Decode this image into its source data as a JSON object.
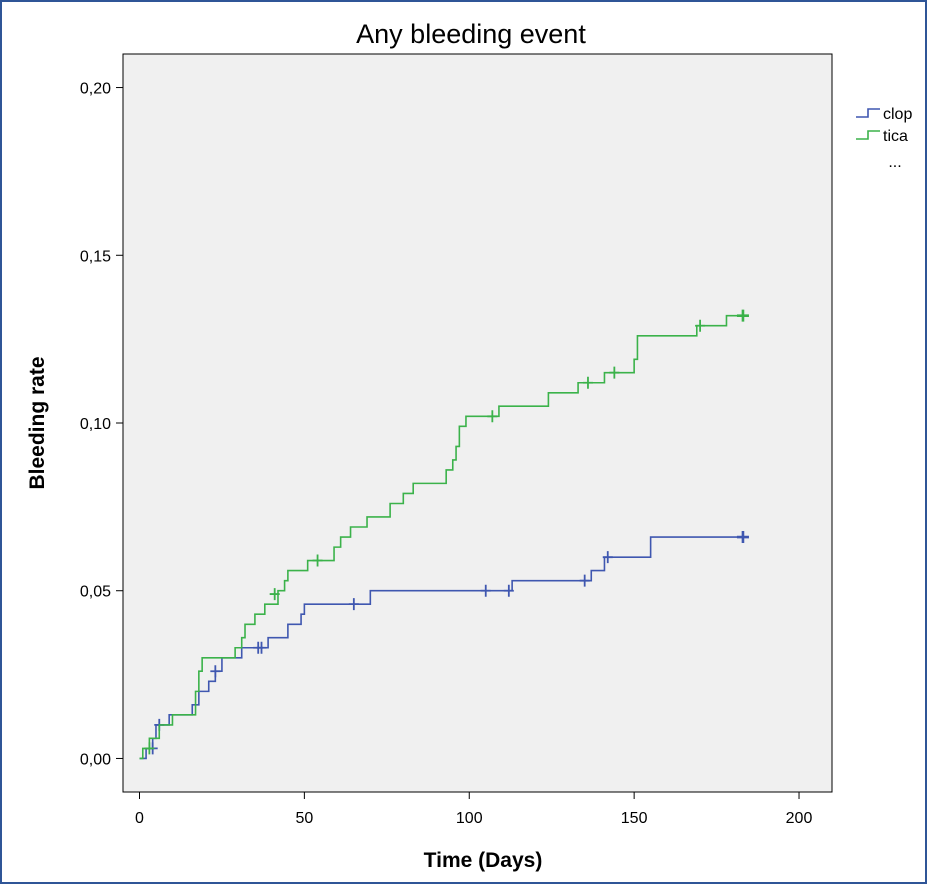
{
  "chart_data": {
    "type": "line",
    "title": "Any bleeding event",
    "xlabel": "Time (Days)",
    "ylabel": "Bleeding rate",
    "xlim": [
      -5,
      210
    ],
    "ylim": [
      -0.01,
      0.21
    ],
    "xticks": [
      0,
      50,
      100,
      150,
      200
    ],
    "xtick_labels": [
      "0",
      "50",
      "100",
      "150",
      "200"
    ],
    "yticks": [
      0.0,
      0.05,
      0.1,
      0.15,
      0.2
    ],
    "ytick_labels": [
      "0,00",
      "0,05",
      "0,10",
      "0,15",
      "0,20"
    ],
    "grid": false,
    "legend": {
      "position": "right",
      "more_label": "..."
    },
    "background": "#f0f0f0",
    "series": [
      {
        "name": "clop",
        "color": "#3f57b0",
        "steps": [
          [
            0,
            0.0
          ],
          [
            2,
            0.003
          ],
          [
            4,
            0.006
          ],
          [
            5,
            0.01
          ],
          [
            9,
            0.013
          ],
          [
            16,
            0.016
          ],
          [
            18,
            0.02
          ],
          [
            21,
            0.023
          ],
          [
            23,
            0.026
          ],
          [
            25,
            0.03
          ],
          [
            31,
            0.033
          ],
          [
            39,
            0.036
          ],
          [
            45,
            0.04
          ],
          [
            49,
            0.043
          ],
          [
            50,
            0.046
          ],
          [
            70,
            0.05
          ],
          [
            113,
            0.053
          ],
          [
            137,
            0.056
          ],
          [
            141,
            0.06
          ],
          [
            155,
            0.066
          ],
          [
            183,
            0.066
          ]
        ],
        "censored": [
          [
            4,
            0.003
          ],
          [
            6,
            0.01
          ],
          [
            23,
            0.026
          ],
          [
            36,
            0.033
          ],
          [
            37,
            0.033
          ],
          [
            65,
            0.046
          ],
          [
            105,
            0.05
          ],
          [
            112,
            0.05
          ],
          [
            135,
            0.053
          ],
          [
            142,
            0.06
          ],
          [
            183,
            0.066
          ]
        ]
      },
      {
        "name": "tica",
        "color": "#3bb24a",
        "steps": [
          [
            0,
            0.0
          ],
          [
            1,
            0.003
          ],
          [
            3,
            0.006
          ],
          [
            6,
            0.01
          ],
          [
            10,
            0.013
          ],
          [
            17,
            0.02
          ],
          [
            18,
            0.026
          ],
          [
            19,
            0.03
          ],
          [
            29,
            0.033
          ],
          [
            31,
            0.036
          ],
          [
            32,
            0.04
          ],
          [
            35,
            0.043
          ],
          [
            38,
            0.046
          ],
          [
            42,
            0.05
          ],
          [
            44,
            0.053
          ],
          [
            45,
            0.056
          ],
          [
            51,
            0.059
          ],
          [
            59,
            0.063
          ],
          [
            61,
            0.066
          ],
          [
            64,
            0.069
          ],
          [
            69,
            0.072
          ],
          [
            76,
            0.076
          ],
          [
            80,
            0.079
          ],
          [
            83,
            0.082
          ],
          [
            93,
            0.086
          ],
          [
            95,
            0.089
          ],
          [
            96,
            0.093
          ],
          [
            97,
            0.099
          ],
          [
            99,
            0.102
          ],
          [
            109,
            0.105
          ],
          [
            124,
            0.109
          ],
          [
            133,
            0.112
          ],
          [
            141,
            0.115
          ],
          [
            150,
            0.119
          ],
          [
            151,
            0.126
          ],
          [
            169,
            0.129
          ],
          [
            178,
            0.132
          ],
          [
            183,
            0.132
          ]
        ],
        "censored": [
          [
            3,
            0.003
          ],
          [
            41,
            0.049
          ],
          [
            54,
            0.059
          ],
          [
            107,
            0.102
          ],
          [
            136,
            0.112
          ],
          [
            144,
            0.115
          ],
          [
            170,
            0.129
          ],
          [
            183,
            0.132
          ]
        ]
      }
    ]
  }
}
